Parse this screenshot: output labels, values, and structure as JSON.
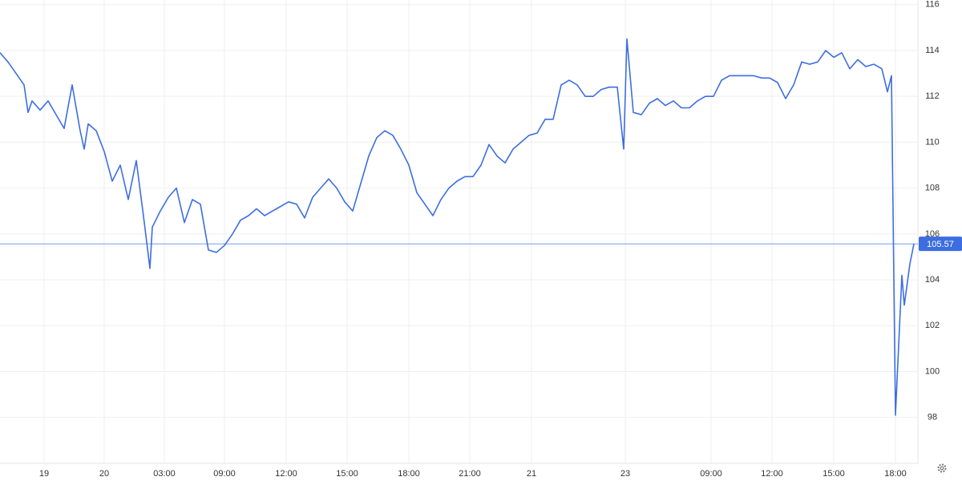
{
  "chart_data": {
    "type": "line",
    "x": [
      0,
      1,
      2,
      3,
      3.5,
      4,
      5,
      6,
      7,
      8,
      9,
      10,
      10.5,
      11,
      12,
      13,
      14,
      15,
      16,
      17,
      18,
      18.7,
      19,
      20,
      21,
      22,
      23,
      24,
      25,
      26,
      27,
      28,
      29,
      30,
      31,
      32,
      33,
      34,
      35,
      36,
      37,
      38,
      39,
      40,
      41,
      42,
      43,
      44,
      45,
      46,
      47,
      48,
      49,
      50,
      51,
      52,
      53,
      54,
      55,
      56,
      57,
      58,
      59,
      60,
      61,
      62,
      63,
      64,
      65,
      66,
      67,
      68,
      69,
      70,
      71,
      72,
      73,
      74,
      75,
      76,
      77,
      77.8,
      78.2,
      79,
      80,
      81,
      82,
      83,
      84,
      85,
      86,
      87,
      88,
      89,
      90,
      91,
      92,
      93,
      94,
      95,
      96,
      97,
      98,
      99,
      100,
      101,
      102,
      103,
      104,
      105,
      106,
      107,
      108,
      109,
      110,
      110.7,
      111.2,
      111.7,
      112.5,
      112.8,
      113.5,
      114
    ],
    "series": [
      {
        "color": "#3d6ee0",
        "values": [
          113.9,
          113.5,
          113,
          112.5,
          111.3,
          111.8,
          111.4,
          111.8,
          111.2,
          110.6,
          112.5,
          110.5,
          109.7,
          110.8,
          110.5,
          109.6,
          108.3,
          109,
          107.5,
          109.2,
          106.5,
          104.5,
          106.3,
          107,
          107.6,
          108,
          106.5,
          107.5,
          107.3,
          105.3,
          105.2,
          105.5,
          106,
          106.6,
          106.8,
          107.1,
          106.8,
          107,
          107.2,
          107.4,
          107.3,
          106.7,
          107.6,
          108,
          108.4,
          108,
          107.4,
          107,
          108.2,
          109.4,
          110.2,
          110.5,
          110.3,
          109.7,
          109,
          107.8,
          107.3,
          106.8,
          107.5,
          108,
          108.3,
          108.5,
          108.5,
          109,
          109.9,
          109.4,
          109.1,
          109.7,
          110,
          110.3,
          110.4,
          111,
          111,
          112.5,
          112.7,
          112.5,
          112,
          112,
          112.3,
          112.4,
          112.4,
          109.7,
          114.5,
          111.3,
          111.2,
          111.7,
          111.9,
          111.6,
          111.8,
          111.5,
          111.5,
          111.8,
          112,
          112,
          112.7,
          112.9,
          112.9,
          112.9,
          112.9,
          112.8,
          112.8,
          112.6,
          111.9,
          112.5,
          113.5,
          113.4,
          113.5,
          114,
          113.7,
          113.9,
          113.2,
          113.6,
          113.3,
          113.4,
          113.2,
          112.2,
          112.9,
          98.1,
          104.2,
          102.9,
          104.7,
          105.57
        ]
      }
    ],
    "last_price": 105.57,
    "xlim": [
      0,
      114.5
    ],
    "xticks": [
      {
        "value": 5.5,
        "label": "19"
      },
      {
        "value": 13,
        "label": "20"
      },
      {
        "value": 20.5,
        "label": "03:00"
      },
      {
        "value": 28,
        "label": "09:00"
      },
      {
        "value": 35.7,
        "label": "12:00"
      },
      {
        "value": 43.3,
        "label": "15:00"
      },
      {
        "value": 51,
        "label": "18:00"
      },
      {
        "value": 58.6,
        "label": "21:00"
      },
      {
        "value": 66.3,
        "label": "21"
      },
      {
        "value": 78,
        "label": "23"
      },
      {
        "value": 88.7,
        "label": "09:00"
      },
      {
        "value": 96.3,
        "label": "12:00"
      },
      {
        "value": 104,
        "label": "15:00"
      },
      {
        "value": 111.7,
        "label": "18:00"
      }
    ],
    "ylim": [
      96,
      116.2
    ],
    "yticks": [
      98,
      100,
      102,
      104,
      106,
      108,
      110,
      112,
      114,
      116
    ],
    "grid": true
  }
}
